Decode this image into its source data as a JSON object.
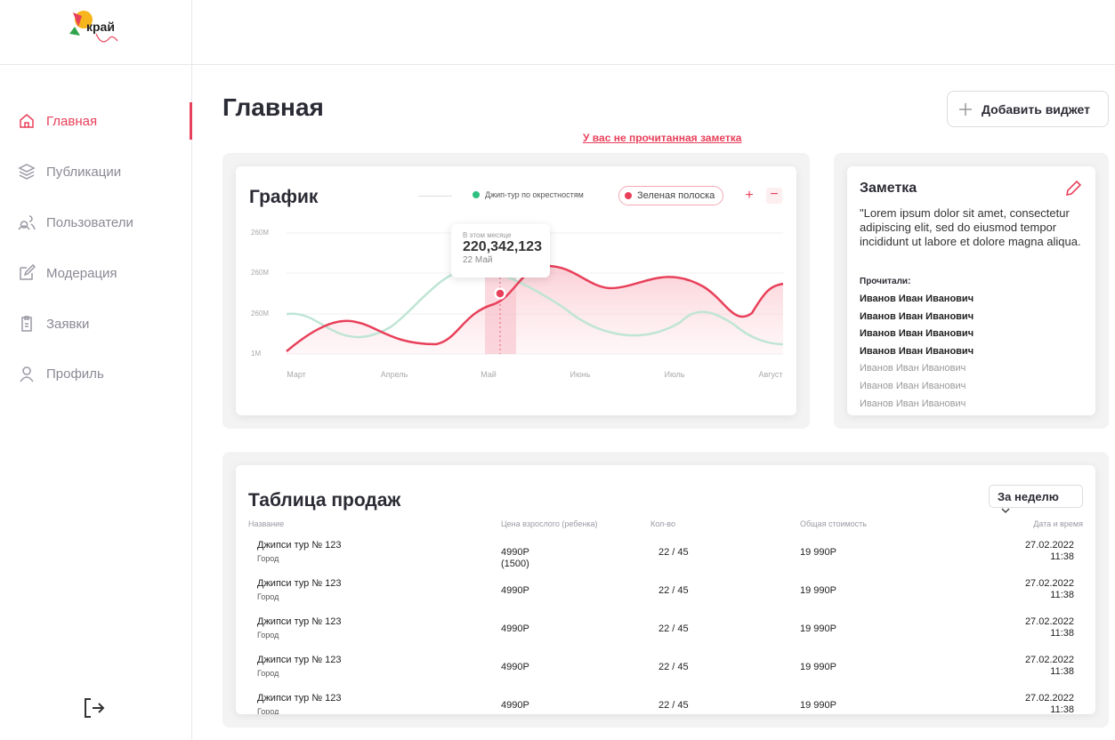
{
  "logo": "край",
  "nav": [
    "Главная",
    "Публикации",
    "Пользователи",
    "Модерация",
    "Заявки",
    "Профиль"
  ],
  "header": {
    "title": "Главная",
    "add_widget": "Добавить виджет",
    "unread_note": "У вас не прочитанная заметка"
  },
  "chart": {
    "title": "График",
    "legend": [
      "Джип-тур по окрестностям",
      "Зеленая полоска"
    ],
    "yticks": [
      "260M",
      "260M",
      "260M",
      "1M"
    ],
    "xlabels": [
      "Март",
      "Апрель",
      "Май",
      "Июнь",
      "Июль",
      "Август"
    ],
    "tooltip": {
      "caption": "В этом месяце",
      "value": "220,342,123",
      "date": "22 Май"
    }
  },
  "note": {
    "title": "Заметка",
    "text": "\"Lorem ipsum dolor sit amet, consectetur adipiscing elit, sed do eiusmod tempor incididunt ut labore et dolore magna aliqua.",
    "read_label": "Прочитали:",
    "readers": [
      "Иванов Иван Иванович",
      "Иванов Иван Иванович",
      "Иванов Иван Иванович",
      "Иванов Иван Иванович",
      "Иванов Иван Иванович",
      "Иванов Иван Иванович",
      "Иванов Иван Иванович"
    ]
  },
  "table": {
    "title": "Таблица продаж",
    "period": "За неделю",
    "columns": [
      "Название",
      "Цена взрослого (ребенка)",
      "Кол-во",
      "Общая стоимость",
      "Дата и время"
    ],
    "rows": [
      {
        "name": "Джипси тур № 123",
        "city": "Город",
        "price": "4990Р",
        "child_price": "(1500)",
        "qty": "22 / 45",
        "total": "19 990Р",
        "date": "27.02.2022",
        "time": "11:38"
      },
      {
        "name": "Джипси тур № 123",
        "city": "Город",
        "price": "4990Р",
        "qty": "22 / 45",
        "total": "19 990Р",
        "date": "27.02.2022",
        "time": "11:38"
      },
      {
        "name": "Джипси тур № 123",
        "city": "Город",
        "price": "4990Р",
        "qty": "22 / 45",
        "total": "19 990Р",
        "date": "27.02.2022",
        "time": "11:38"
      },
      {
        "name": "Джипси тур № 123",
        "city": "Город",
        "price": "4990Р",
        "qty": "22 / 45",
        "total": "19 990Р",
        "date": "27.02.2022",
        "time": "11:38"
      },
      {
        "name": "Джипси тур № 123",
        "city": "Город",
        "price": "4990Р",
        "qty": "22 / 45",
        "total": "19 990Р",
        "date": "27.02.2022",
        "time": "11:38"
      }
    ]
  }
}
